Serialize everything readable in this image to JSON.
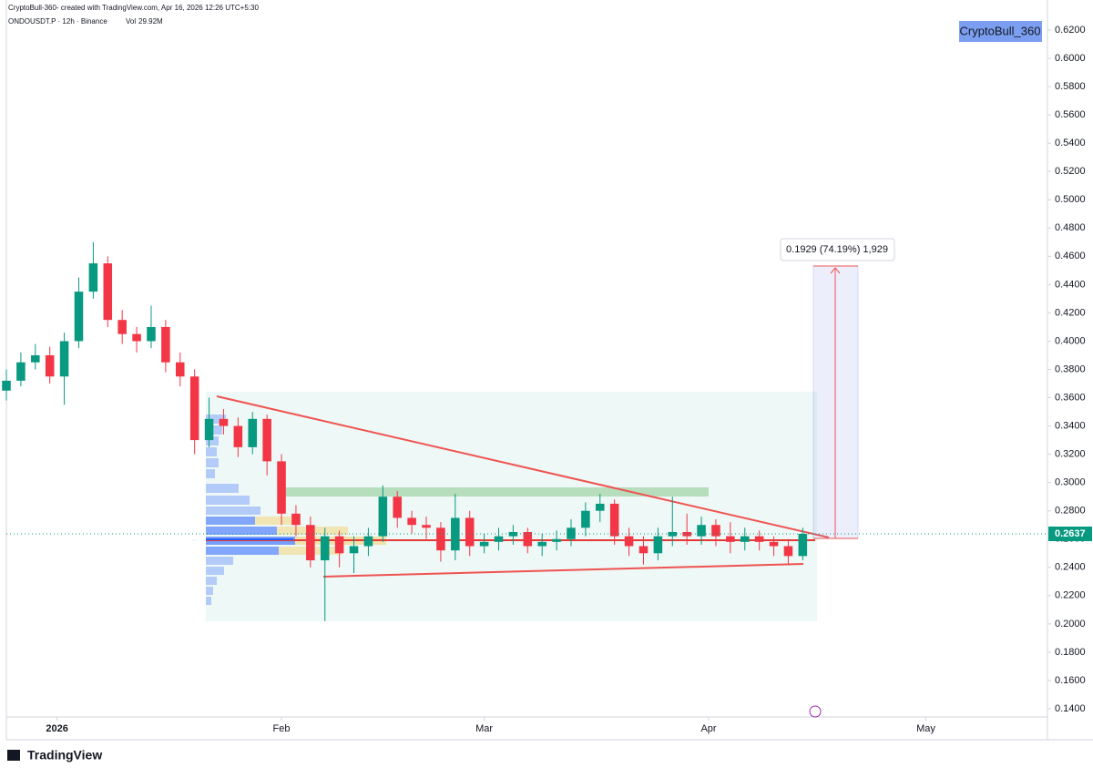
{
  "header": {
    "credit": "CryptoBull-360- created with TradingView.com, Apr 16, 2026 12:26 UTC+5:30",
    "symbol": "ONDOUSDT.P · 12h · Binance",
    "volume_label": "Vol",
    "volume": "29.92M",
    "watermark": "CryptoBull_360",
    "logo": "TradingView"
  },
  "chart_data": {
    "type": "candlestick",
    "x": [
      0,
      2,
      4,
      6,
      8,
      10,
      12,
      14,
      16,
      18,
      20,
      22,
      24,
      26,
      28,
      30,
      32,
      34,
      36,
      38,
      40,
      42,
      44,
      46,
      48,
      50,
      52,
      54,
      56,
      58,
      60,
      62,
      64,
      66,
      68,
      70,
      72,
      74,
      76,
      78,
      80,
      82,
      84,
      86,
      88,
      90,
      92,
      94,
      96,
      98,
      100,
      102,
      104,
      106,
      108,
      110
    ],
    "open": [
      0.365,
      0.372,
      0.385,
      0.39,
      0.375,
      0.4,
      0.435,
      0.455,
      0.415,
      0.405,
      0.4,
      0.41,
      0.385,
      0.375,
      0.33,
      0.345,
      0.34,
      0.325,
      0.345,
      0.315,
      0.278,
      0.27,
      0.245,
      0.262,
      0.25,
      0.255,
      0.262,
      0.29,
      0.275,
      0.27,
      0.268,
      0.252,
      0.275,
      0.255,
      0.258,
      0.262,
      0.265,
      0.255,
      0.258,
      0.26,
      0.268,
      0.28,
      0.285,
      0.262,
      0.255,
      0.25,
      0.262,
      0.265,
      0.262,
      0.27,
      0.262,
      0.258,
      0.262,
      0.258,
      0.255,
      0.248
    ],
    "high": [
      0.38,
      0.392,
      0.398,
      0.396,
      0.406,
      0.445,
      0.47,
      0.46,
      0.422,
      0.41,
      0.425,
      0.415,
      0.392,
      0.38,
      0.36,
      0.352,
      0.346,
      0.35,
      0.348,
      0.32,
      0.284,
      0.276,
      0.268,
      0.266,
      0.262,
      0.268,
      0.298,
      0.294,
      0.28,
      0.276,
      0.272,
      0.292,
      0.28,
      0.264,
      0.268,
      0.27,
      0.268,
      0.264,
      0.266,
      0.274,
      0.286,
      0.292,
      0.288,
      0.268,
      0.262,
      0.268,
      0.29,
      0.278,
      0.276,
      0.274,
      0.272,
      0.268,
      0.266,
      0.262,
      0.26,
      0.268
    ],
    "low": [
      0.358,
      0.368,
      0.38,
      0.37,
      0.355,
      0.395,
      0.43,
      0.41,
      0.398,
      0.392,
      0.395,
      0.378,
      0.368,
      0.32,
      0.325,
      0.334,
      0.318,
      0.32,
      0.305,
      0.27,
      0.262,
      0.24,
      0.202,
      0.24,
      0.236,
      0.248,
      0.258,
      0.268,
      0.264,
      0.26,
      0.244,
      0.245,
      0.248,
      0.25,
      0.252,
      0.256,
      0.25,
      0.248,
      0.252,
      0.255,
      0.262,
      0.272,
      0.256,
      0.248,
      0.242,
      0.245,
      0.255,
      0.256,
      0.256,
      0.255,
      0.25,
      0.252,
      0.252,
      0.248,
      0.242,
      0.245
    ],
    "close": [
      0.372,
      0.385,
      0.39,
      0.375,
      0.4,
      0.435,
      0.455,
      0.415,
      0.405,
      0.4,
      0.41,
      0.385,
      0.375,
      0.33,
      0.345,
      0.34,
      0.325,
      0.345,
      0.315,
      0.278,
      0.27,
      0.245,
      0.262,
      0.25,
      0.255,
      0.262,
      0.29,
      0.275,
      0.27,
      0.268,
      0.252,
      0.275,
      0.255,
      0.258,
      0.262,
      0.265,
      0.255,
      0.258,
      0.26,
      0.268,
      0.28,
      0.285,
      0.262,
      0.255,
      0.25,
      0.262,
      0.265,
      0.262,
      0.27,
      0.262,
      0.258,
      0.262,
      0.258,
      0.255,
      0.248,
      0.2637
    ],
    "up_color": "#089981",
    "down_color": "#f23645",
    "last_price": 0.2637,
    "measure_label": "0.1929 (74.19%) 1,929",
    "xlim": [
      0,
      143.8
    ],
    "xticks": [
      {
        "value": 7,
        "label": "2026"
      },
      {
        "value": 38,
        "label": "Feb"
      },
      {
        "value": 66,
        "label": "Mar"
      },
      {
        "value": 97,
        "label": "Apr"
      },
      {
        "value": 127,
        "label": "May"
      }
    ],
    "ylim": [
      0.1342,
      0.6316
    ],
    "yticks": [
      {
        "value": 0.14,
        "label": "0.1400"
      },
      {
        "value": 0.16,
        "label": "0.1600"
      },
      {
        "value": 0.18,
        "label": "0.1800"
      },
      {
        "value": 0.2,
        "label": "0.2000"
      },
      {
        "value": 0.22,
        "label": "0.2200"
      },
      {
        "value": 0.24,
        "label": "0.2400"
      },
      {
        "value": 0.26,
        "label": "0.2600"
      },
      {
        "value": 0.28,
        "label": "0.2800"
      },
      {
        "value": 0.3,
        "label": "0.3000"
      },
      {
        "value": 0.32,
        "label": "0.3200"
      },
      {
        "value": 0.34,
        "label": "0.3400"
      },
      {
        "value": 0.36,
        "label": "0.3600"
      },
      {
        "value": 0.38,
        "label": "0.3800"
      },
      {
        "value": 0.4,
        "label": "0.4000"
      },
      {
        "value": 0.42,
        "label": "0.4200"
      },
      {
        "value": 0.44,
        "label": "0.4400"
      },
      {
        "value": 0.46,
        "label": "0.4600"
      },
      {
        "value": 0.48,
        "label": "0.4800"
      },
      {
        "value": 0.5,
        "label": "0.5000"
      },
      {
        "value": 0.52,
        "label": "0.5200"
      },
      {
        "value": 0.54,
        "label": "0.5400"
      },
      {
        "value": 0.56,
        "label": "0.5600"
      },
      {
        "value": 0.58,
        "label": "0.5800"
      },
      {
        "value": 0.6,
        "label": "0.6000"
      },
      {
        "value": 0.62,
        "label": "0.6200"
      }
    ],
    "grid": false
  }
}
